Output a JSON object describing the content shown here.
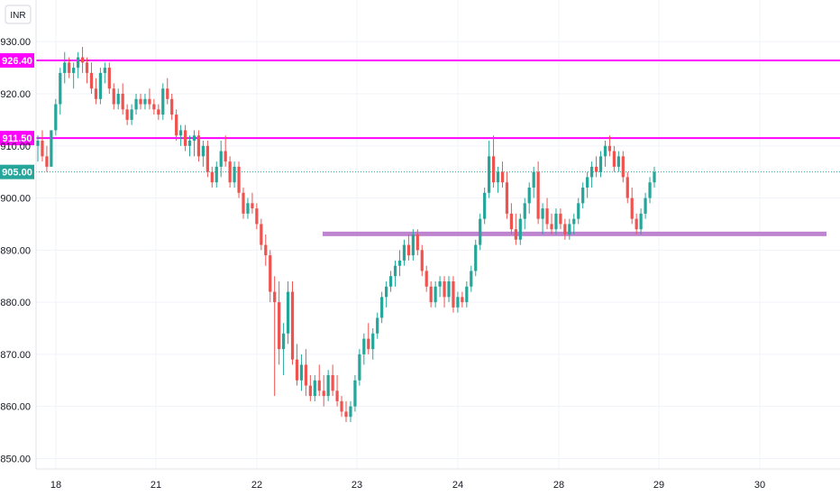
{
  "currency_badge": "INR",
  "colors": {
    "up": "#26a69a",
    "down": "#ef5350",
    "resistance": "#ff00ff",
    "support": "#b46ec8",
    "current": "#26a69a",
    "grid": "#f0f3fa"
  },
  "chart_data": {
    "type": "candlestick",
    "x_tick_labels": [
      "18",
      "21",
      "22",
      "23",
      "24",
      "28",
      "29",
      "30"
    ],
    "y_tick_labels": [
      "930.00",
      "920.00",
      "910.00",
      "900.00",
      "890.00",
      "880.00",
      "870.00",
      "860.00",
      "850.00"
    ],
    "ylim": [
      848,
      938
    ],
    "price_lines": [
      {
        "label": "926.40",
        "value": 926.4,
        "kind": "resistance"
      },
      {
        "label": "911.50",
        "value": 911.5,
        "kind": "resistance"
      },
      {
        "label": "905.00",
        "value": 905.0,
        "kind": "current"
      }
    ],
    "support_zone": {
      "value": 893.2,
      "from_day": "22"
    },
    "candles": [
      [
        910,
        912,
        907,
        911
      ],
      [
        911,
        913,
        907,
        908
      ],
      [
        908,
        910,
        905,
        906
      ],
      [
        906,
        913,
        906,
        913
      ],
      [
        913,
        919,
        912,
        918
      ],
      [
        918,
        925,
        916,
        924
      ],
      [
        924,
        928,
        922,
        926
      ],
      [
        926,
        927,
        923,
        924
      ],
      [
        924,
        926,
        921,
        925
      ],
      [
        925,
        928,
        923,
        927
      ],
      [
        927,
        929,
        924,
        926
      ],
      [
        926,
        927,
        922,
        924
      ],
      [
        924,
        926,
        920,
        921
      ],
      [
        921,
        923,
        918,
        919
      ],
      [
        919,
        925,
        918,
        924
      ],
      [
        924,
        926,
        922,
        925
      ],
      [
        925,
        926,
        920,
        921
      ],
      [
        921,
        922,
        917,
        918
      ],
      [
        918,
        921,
        917,
        920
      ],
      [
        920,
        922,
        916,
        917
      ],
      [
        917,
        918,
        914,
        915
      ],
      [
        915,
        918,
        914,
        917
      ],
      [
        917,
        920,
        916,
        919
      ],
      [
        919,
        920,
        917,
        918
      ],
      [
        918,
        920,
        917,
        919
      ],
      [
        919,
        921,
        917,
        918
      ],
      [
        918,
        919,
        916,
        917
      ],
      [
        917,
        918,
        915,
        916
      ],
      [
        916,
        922,
        915,
        921
      ],
      [
        921,
        923,
        918,
        919
      ],
      [
        919,
        920,
        915,
        916
      ],
      [
        916,
        917,
        911,
        912
      ],
      [
        912,
        914,
        910,
        913
      ],
      [
        913,
        914,
        909,
        910
      ],
      [
        910,
        912,
        908,
        911
      ],
      [
        911,
        913,
        908,
        912
      ],
      [
        912,
        913,
        907,
        908
      ],
      [
        908,
        911,
        906,
        910
      ],
      [
        910,
        911,
        904,
        905
      ],
      [
        905,
        906,
        902,
        903
      ],
      [
        903,
        907,
        902,
        906
      ],
      [
        906,
        911,
        904,
        909
      ],
      [
        909,
        912,
        906,
        907
      ],
      [
        907,
        908,
        902,
        903
      ],
      [
        903,
        907,
        902,
        906
      ],
      [
        906,
        907,
        900,
        901
      ],
      [
        901,
        902,
        896,
        897
      ],
      [
        897,
        900,
        896,
        899
      ],
      [
        899,
        901,
        897,
        898
      ],
      [
        898,
        899,
        894,
        895
      ],
      [
        895,
        896,
        890,
        891
      ],
      [
        891,
        893,
        887,
        889
      ],
      [
        889,
        890,
        880,
        882
      ],
      [
        882,
        885,
        862,
        880
      ],
      [
        880,
        884,
        868,
        871
      ],
      [
        871,
        876,
        866,
        874
      ],
      [
        874,
        884,
        872,
        882
      ],
      [
        882,
        884,
        868,
        869
      ],
      [
        869,
        872,
        864,
        865
      ],
      [
        865,
        870,
        863,
        868
      ],
      [
        868,
        871,
        862,
        864
      ],
      [
        864,
        866,
        861,
        862
      ],
      [
        862,
        866,
        861,
        865
      ],
      [
        865,
        868,
        862,
        863
      ],
      [
        863,
        866,
        860,
        862
      ],
      [
        862,
        867,
        861,
        866
      ],
      [
        866,
        868,
        862,
        863
      ],
      [
        863,
        866,
        860,
        861
      ],
      [
        861,
        862,
        858,
        859
      ],
      [
        859,
        861,
        857,
        858
      ],
      [
        858,
        861,
        857,
        860
      ],
      [
        860,
        866,
        859,
        865
      ],
      [
        865,
        871,
        864,
        870
      ],
      [
        870,
        874,
        868,
        873
      ],
      [
        873,
        876,
        870,
        871
      ],
      [
        871,
        875,
        869,
        874
      ],
      [
        874,
        878,
        873,
        877
      ],
      [
        877,
        882,
        876,
        881
      ],
      [
        881,
        884,
        879,
        883
      ],
      [
        883,
        886,
        882,
        885
      ],
      [
        885,
        888,
        883,
        887
      ],
      [
        887,
        890,
        885,
        888
      ],
      [
        888,
        892,
        887,
        891
      ],
      [
        891,
        893,
        888,
        889
      ],
      [
        889,
        894,
        888,
        893
      ],
      [
        893,
        894,
        889,
        890
      ],
      [
        890,
        891,
        885,
        886
      ],
      [
        886,
        887,
        882,
        883
      ],
      [
        883,
        884,
        879,
        880
      ],
      [
        880,
        884,
        879,
        883
      ],
      [
        883,
        885,
        881,
        884
      ],
      [
        884,
        885,
        879,
        881
      ],
      [
        881,
        885,
        880,
        884
      ],
      [
        884,
        885,
        878,
        879
      ],
      [
        879,
        882,
        878,
        881
      ],
      [
        881,
        882,
        879,
        880
      ],
      [
        880,
        884,
        879,
        883
      ],
      [
        883,
        887,
        882,
        886
      ],
      [
        886,
        892,
        885,
        891
      ],
      [
        891,
        897,
        890,
        896
      ],
      [
        896,
        902,
        895,
        901
      ],
      [
        901,
        911,
        900,
        908
      ],
      [
        908,
        912,
        902,
        903
      ],
      [
        903,
        906,
        901,
        905
      ],
      [
        905,
        907,
        902,
        903
      ],
      [
        903,
        905,
        896,
        897
      ],
      [
        897,
        899,
        893,
        894
      ],
      [
        894,
        897,
        891,
        892
      ],
      [
        892,
        897,
        891,
        896
      ],
      [
        896,
        900,
        894,
        899
      ],
      [
        899,
        903,
        897,
        902
      ],
      [
        902,
        906,
        900,
        905
      ],
      [
        905,
        907,
        895,
        896
      ],
      [
        896,
        899,
        893,
        898
      ],
      [
        898,
        900,
        894,
        895
      ],
      [
        895,
        897,
        893,
        894
      ],
      [
        894,
        898,
        893,
        897
      ],
      [
        897,
        898,
        894,
        895
      ],
      [
        895,
        896,
        892,
        893
      ],
      [
        893,
        896,
        892,
        895
      ],
      [
        895,
        897,
        893,
        896
      ],
      [
        896,
        900,
        895,
        899
      ],
      [
        899,
        903,
        898,
        902
      ],
      [
        902,
        905,
        900,
        904
      ],
      [
        904,
        907,
        902,
        906
      ],
      [
        906,
        908,
        904,
        905
      ],
      [
        905,
        909,
        904,
        908
      ],
      [
        908,
        911,
        906,
        910
      ],
      [
        910,
        912,
        908,
        909
      ],
      [
        909,
        910,
        905,
        906
      ],
      [
        906,
        909,
        905,
        908
      ],
      [
        908,
        909,
        903,
        904
      ],
      [
        904,
        905,
        899,
        900
      ],
      [
        900,
        902,
        895,
        896
      ],
      [
        896,
        897,
        893,
        894
      ],
      [
        894,
        898,
        893,
        897
      ],
      [
        897,
        901,
        896,
        900
      ],
      [
        900,
        904,
        899,
        903
      ],
      [
        903,
        906,
        902,
        905
      ]
    ]
  }
}
